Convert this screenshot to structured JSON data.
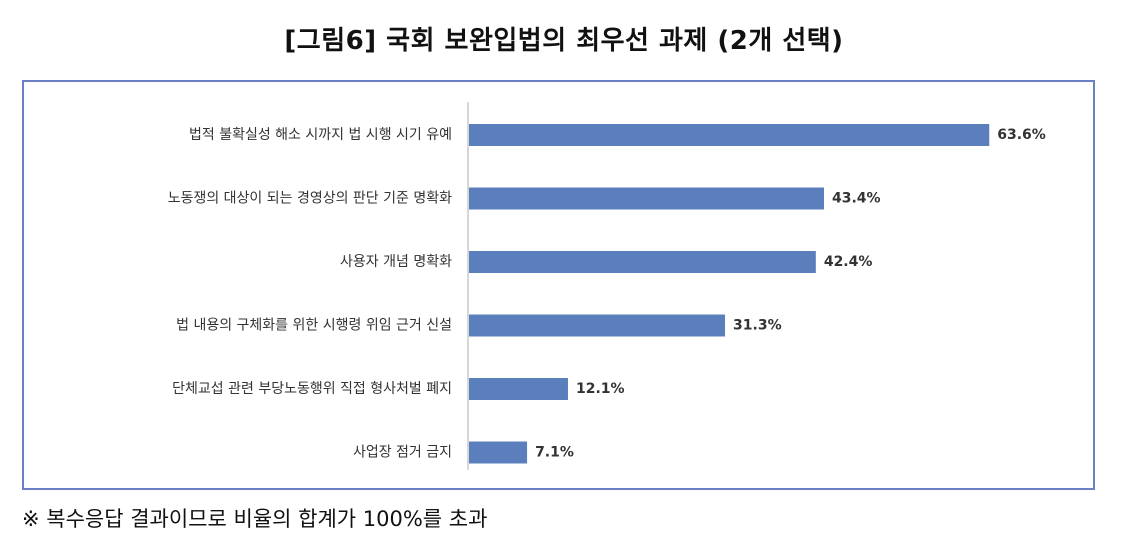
{
  "title": "[그림6] 국회 보완입법의 최우선 과제 (2개 선택)",
  "footnote": "※ 복수응답 결과이므로 비율의 합계가 100%를 초과",
  "colors": {
    "bar": "#5b7fbd",
    "frame": "#6b7fc4",
    "axis": "#c8c8c8"
  },
  "chart_data": {
    "type": "bar",
    "orientation": "horizontal",
    "categories": [
      "법적 불확실성 해소 시까지 법 시행 시기 유예",
      "노동쟁의 대상이 되는 경영상의 판단 기준 명확화",
      "사용자 개념 명확화",
      "법 내용의 구체화를 위한 시행령 위임 근거 신설",
      "단체교섭 관련 부당노동행위 직접 형사처벌 폐지",
      "사업장 점거 금지"
    ],
    "values": [
      63.6,
      43.4,
      42.4,
      31.3,
      12.1,
      7.1
    ],
    "value_labels": [
      "63.6%",
      "43.4%",
      "42.4%",
      "31.3%",
      "12.1%",
      "7.1%"
    ],
    "xlim": [
      0,
      70
    ],
    "grid": false
  }
}
